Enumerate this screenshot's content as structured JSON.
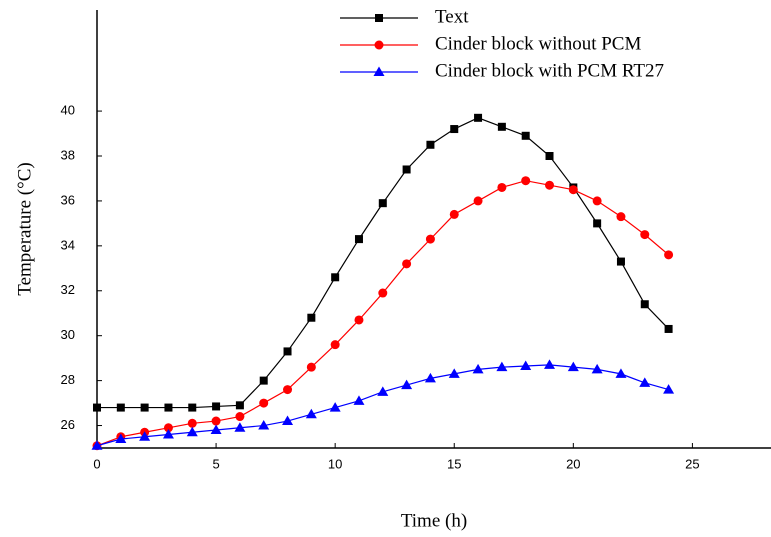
{
  "chart_data": {
    "type": "line",
    "xlabel": "Time (h)",
    "ylabel": "Temperature (°C)",
    "x": [
      0,
      1,
      2,
      3,
      4,
      5,
      6,
      7,
      8,
      9,
      10,
      11,
      12,
      13,
      14,
      15,
      16,
      17,
      18,
      19,
      20,
      21,
      22,
      23,
      24
    ],
    "series": [
      {
        "name": "Text",
        "color": "#000000",
        "marker": "square",
        "values": [
          26.8,
          26.8,
          26.8,
          26.8,
          26.8,
          26.85,
          26.9,
          28.0,
          29.3,
          30.8,
          32.6,
          34.3,
          35.9,
          37.4,
          38.5,
          39.2,
          39.7,
          39.3,
          38.9,
          38.0,
          36.6,
          35.0,
          33.3,
          31.4,
          30.3
        ]
      },
      {
        "name": "Cinder block without PCM",
        "color": "#ff0000",
        "marker": "circle",
        "values": [
          25.1,
          25.5,
          25.7,
          25.9,
          26.1,
          26.2,
          26.4,
          27.0,
          27.6,
          28.6,
          29.6,
          30.7,
          31.9,
          33.2,
          34.3,
          35.4,
          36.0,
          36.6,
          36.9,
          36.7,
          36.5,
          36.0,
          35.3,
          34.5,
          33.6
        ]
      },
      {
        "name": "Cinder block with PCM RT27",
        "color": "#0000ff",
        "marker": "triangle",
        "values": [
          25.1,
          25.4,
          25.5,
          25.6,
          25.7,
          25.8,
          25.9,
          26.0,
          26.2,
          26.5,
          26.8,
          27.1,
          27.5,
          27.8,
          28.1,
          28.3,
          28.5,
          28.6,
          28.65,
          28.7,
          28.6,
          28.5,
          28.3,
          27.9,
          27.6
        ]
      }
    ],
    "xlim": [
      0,
      28.3
    ],
    "xticks": [
      0,
      5,
      10,
      15,
      20,
      25
    ],
    "ylim": [
      25,
      44.5
    ],
    "yticks": [
      26,
      28,
      30,
      32,
      34,
      36,
      38,
      40
    ],
    "grid": false,
    "legend": "top"
  }
}
